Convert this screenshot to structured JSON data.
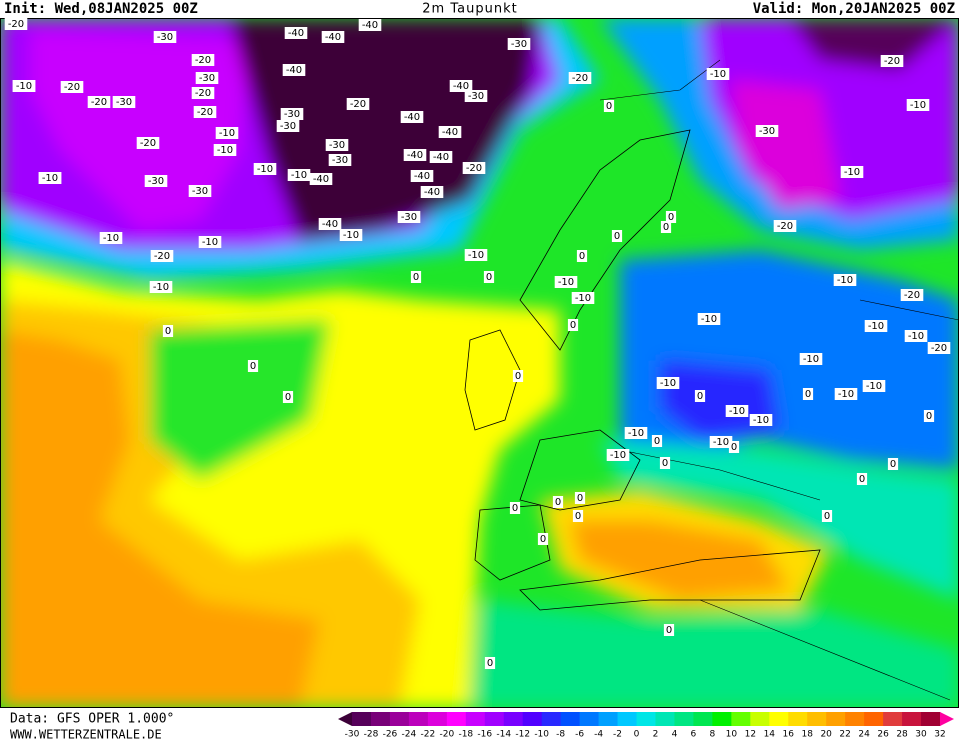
{
  "header": {
    "init": "Init: Wed,08JAN2025 00Z",
    "title": "2m Taupunkt",
    "valid": "Valid: Mon,20JAN2025 00Z"
  },
  "footer": {
    "data_source": "Data: GFS OPER 1.000°",
    "website": "WWW.WETTERZENTRALE.DE"
  },
  "legend": {
    "ticks": [
      -30,
      -28,
      -26,
      -24,
      -22,
      -20,
      -18,
      -16,
      -14,
      -12,
      -10,
      -8,
      -6,
      -4,
      -2,
      0,
      2,
      4,
      6,
      8,
      10,
      12,
      14,
      16,
      18,
      20,
      22,
      24,
      26,
      28,
      30,
      32
    ],
    "colors": [
      "#3c0038",
      "#56005a",
      "#780078",
      "#9a009a",
      "#bc00bc",
      "#dc00dc",
      "#ff00ff",
      "#c800ff",
      "#a000ff",
      "#7800ff",
      "#5000ff",
      "#2828ff",
      "#0050ff",
      "#0078ff",
      "#00a0ff",
      "#00c8ff",
      "#00e6e6",
      "#00e6b4",
      "#00e682",
      "#00e650",
      "#00f000",
      "#64ff00",
      "#c8ff00",
      "#ffff00",
      "#ffdc00",
      "#ffbe00",
      "#ffa000",
      "#ff8200",
      "#ff6400",
      "#e03c3c",
      "#c8143c",
      "#a00032",
      "#ff00a0"
    ]
  },
  "contour_labels": [
    "-20",
    "-30",
    "-20",
    "-40",
    "-40",
    "-40",
    "-30",
    "-20",
    "-10",
    "-20",
    "-10",
    "-10",
    "-20",
    "-20",
    "-30",
    "-30",
    "-20",
    "-20",
    "-40",
    "-40",
    "-30",
    "-20",
    "-40",
    "-40",
    "-30",
    "-30",
    "-20",
    "-10",
    "-10",
    "-10",
    "-10",
    "-30",
    "-30",
    "-40",
    "-40",
    "-40",
    "-40",
    "-40",
    "-20",
    "-30",
    "-10",
    "-10",
    "-30",
    "-30",
    "-30",
    "-40",
    "-10",
    "-10",
    "-10",
    "-20",
    "-10",
    "-10",
    "-20",
    "-10",
    "-10",
    "-10",
    "-20",
    "-10",
    "-10",
    "-10",
    "-20",
    "-10",
    "-10",
    "-10",
    "-10",
    "-10",
    "-10",
    "-10",
    "-10",
    "-10",
    "-10",
    "-10",
    "0",
    "0",
    "0",
    "0",
    "0",
    "0",
    "0",
    "0",
    "0",
    "0",
    "0",
    "0",
    "0",
    "0",
    "0",
    "0",
    "0",
    "0",
    "0",
    "0",
    "0",
    "0",
    "0",
    "0",
    "0",
    "0",
    "0",
    "0"
  ]
}
